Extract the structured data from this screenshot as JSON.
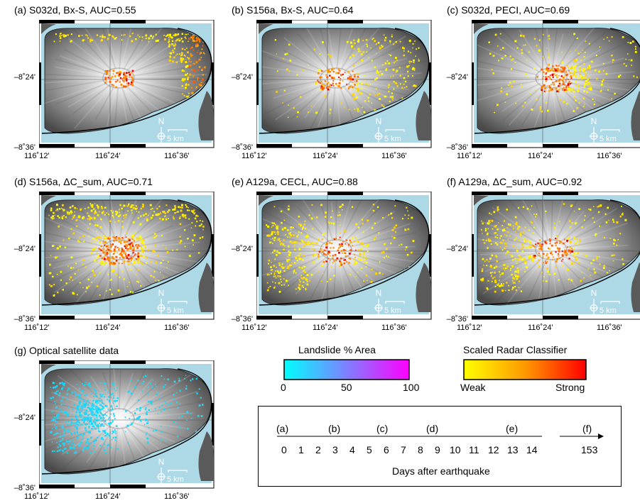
{
  "panels": [
    {
      "title": "(a) S032d, Bx-S, AUC=0.55",
      "overlay": "radar",
      "pattern": "coast"
    },
    {
      "title": "(b) S156a, Bx-S, AUC=0.64",
      "overlay": "radar",
      "pattern": "scatter"
    },
    {
      "title": "(c) S032d, PECI, AUC=0.69",
      "overlay": "radar",
      "pattern": "center"
    },
    {
      "title": "(d) S156a, ΔC_sum, AUC=0.71",
      "overlay": "radar",
      "pattern": "dense"
    },
    {
      "title": "(e) A129a, CECL, AUC=0.88",
      "overlay": "radar",
      "pattern": "west"
    },
    {
      "title": "(f) A129a, ΔC_sum, AUC=0.92",
      "overlay": "radar",
      "pattern": "west"
    },
    {
      "title": "(g) Optical satellite data",
      "overlay": "optical",
      "pattern": "optical"
    }
  ],
  "map": {
    "lat_labels": [
      "–8˚24'",
      "–8˚36'"
    ],
    "lon_labels": [
      "116˚12'",
      "116˚24'",
      "116˚36'"
    ],
    "north_label": "N",
    "scale_label": "5 km",
    "sea_color": "#add8e6",
    "boundary_color": "#000000"
  },
  "colorbars": {
    "landslide": {
      "title": "Landslide % Area",
      "ticks": [
        "0",
        "50",
        "100"
      ],
      "colors": [
        "#00ffff",
        "#ff00ff"
      ]
    },
    "radar": {
      "title": "Scaled Radar Classifier",
      "low_label": "Weak",
      "high_label": "Strong",
      "colors": [
        "#ffff00",
        "#ff0000"
      ]
    }
  },
  "timeline": {
    "letters": [
      "(a)",
      "(b)",
      "(c)",
      "(d)",
      "(e)",
      "(f)"
    ],
    "days": [
      "0",
      "1",
      "2",
      "3",
      "4",
      "5",
      "6",
      "7",
      "8",
      "9",
      "10",
      "11",
      "12",
      "13",
      "14",
      "153"
    ],
    "caption": "Days after earthquake"
  }
}
